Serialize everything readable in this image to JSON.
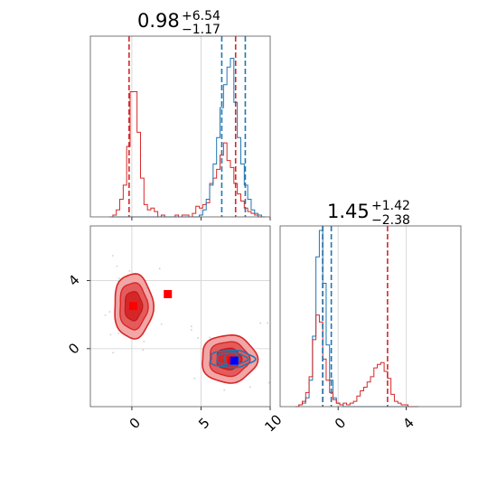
{
  "chart_data": [
    {
      "type": "histogram",
      "panel": "marginal-x",
      "title_value": "0.98",
      "title_plus": "+6.54",
      "title_minus": "−1.17",
      "xlim": [
        -3,
        10
      ],
      "grid": true,
      "bins_x": [
        -1.5,
        -1.25,
        -1.0,
        -0.75,
        -0.5,
        -0.25,
        0.0,
        0.25,
        0.5,
        0.75,
        1.0,
        1.25,
        1.5,
        1.75,
        2.0,
        2.25,
        2.5,
        2.75,
        3.0,
        3.25,
        3.5,
        3.75,
        4.0,
        4.25,
        4.5,
        4.75,
        5.0,
        5.25,
        5.5,
        5.75,
        6.0,
        6.25,
        6.5,
        6.75,
        7.0,
        7.25,
        7.5,
        7.75,
        8.0,
        8.25,
        8.5,
        8.75,
        9.0,
        9.25,
        9.5
      ],
      "series": [
        {
          "color": "#d62728",
          "values": [
            0.0,
            0.01,
            0.04,
            0.1,
            0.18,
            0.4,
            0.71,
            0.71,
            0.48,
            0.22,
            0.07,
            0.04,
            0.05,
            0.03,
            0.0,
            0.01,
            0.0,
            0.0,
            0.0,
            0.01,
            0.0,
            0.01,
            0.01,
            0.0,
            0.02,
            0.06,
            0.05,
            0.07,
            0.08,
            0.19,
            0.22,
            0.27,
            0.35,
            0.42,
            0.32,
            0.28,
            0.19,
            0.13,
            0.09,
            0.05,
            0.03,
            0.02,
            0.01,
            0.0,
            0.0
          ]
        },
        {
          "color": "#1f77b4",
          "values": [
            0.0,
            0.0,
            0.0,
            0.0,
            0.0,
            0.0,
            0.0,
            0.0,
            0.0,
            0.0,
            0.0,
            0.0,
            0.0,
            0.0,
            0.0,
            0.0,
            0.0,
            0.0,
            0.0,
            0.0,
            0.0,
            0.0,
            0.0,
            0.0,
            0.0,
            0.0,
            0.01,
            0.04,
            0.1,
            0.18,
            0.3,
            0.45,
            0.62,
            0.75,
            0.85,
            0.9,
            0.65,
            0.45,
            0.3,
            0.18,
            0.1,
            0.04,
            0.02,
            0.01,
            0.0
          ]
        }
      ],
      "vlines": [
        {
          "x": -0.2,
          "color": "#d62728"
        },
        {
          "x": 7.5,
          "color": "#d62728"
        },
        {
          "x": 6.5,
          "color": "#1f77b4"
        },
        {
          "x": 8.2,
          "color": "#1f77b4"
        }
      ]
    },
    {
      "type": "contour",
      "panel": "joint",
      "xlim": [
        -3,
        10
      ],
      "ylim": [
        -3.4,
        7.2
      ],
      "xticks": [
        0,
        5,
        10
      ],
      "yticks": [
        0,
        4
      ],
      "grid": true,
      "red_modes": [
        {
          "cx": 0.1,
          "cy": 2.5,
          "rx": 1.4,
          "ry": 1.9
        },
        {
          "cx": 7.0,
          "cy": -0.6,
          "rx": 2.0,
          "ry": 1.4
        }
      ],
      "blue_mode": {
        "cx": 7.2,
        "cy": -0.6,
        "rx": 1.6,
        "ry": 0.5
      },
      "markers": [
        {
          "x": 0.1,
          "y": 2.5,
          "color": "#ff0000"
        },
        {
          "x": 2.6,
          "y": 3.2,
          "color": "#ff0000"
        },
        {
          "x": 7.2,
          "y": -0.7,
          "color": "#ff0000"
        },
        {
          "x": 7.4,
          "y": -0.7,
          "color": "#0000ff"
        }
      ]
    },
    {
      "type": "histogram",
      "panel": "marginal-y",
      "title_value": "1.45",
      "title_plus": "+1.42",
      "title_minus": "−2.38",
      "xlim": [
        -3.4,
        7.2
      ],
      "xticks": [
        0,
        4
      ],
      "grid": true,
      "bins_x": [
        -2.4,
        -2.2,
        -2.0,
        -1.8,
        -1.6,
        -1.4,
        -1.2,
        -1.0,
        -0.8,
        -0.6,
        -0.4,
        -0.2,
        0.0,
        0.2,
        0.4,
        0.6,
        0.8,
        1.0,
        1.2,
        1.4,
        1.6,
        1.8,
        2.0,
        2.2,
        2.4,
        2.6,
        2.8,
        3.0,
        3.2,
        3.4,
        3.6,
        3.8,
        4.0,
        4.2,
        4.4,
        4.6
      ],
      "series": [
        {
          "color": "#1f77b4",
          "values": [
            0.0,
            0.01,
            0.02,
            0.05,
            0.15,
            0.4,
            0.85,
            1.0,
            0.7,
            0.35,
            0.15,
            0.05,
            0.02,
            0.01,
            0.0,
            0.0,
            0.0,
            0.0,
            0.0,
            0.0,
            0.0,
            0.0,
            0.0,
            0.0,
            0.0,
            0.0,
            0.0,
            0.0,
            0.0,
            0.0,
            0.0,
            0.0,
            0.0,
            0.0,
            0.0,
            0.0
          ]
        },
        {
          "color": "#d62728",
          "values": [
            0.0,
            0.01,
            0.03,
            0.08,
            0.17,
            0.38,
            0.52,
            0.48,
            0.27,
            0.15,
            0.08,
            0.04,
            0.02,
            0.01,
            0.02,
            0.01,
            0.02,
            0.03,
            0.06,
            0.09,
            0.11,
            0.14,
            0.17,
            0.22,
            0.24,
            0.25,
            0.2,
            0.16,
            0.07,
            0.03,
            0.02,
            0.01,
            0.01,
            0.0,
            0.0,
            0.0
          ]
        }
      ],
      "vlines": [
        {
          "x": -0.9,
          "color": "#d62728"
        },
        {
          "x": -0.9,
          "color": "#1f77b4"
        },
        {
          "x": -0.4,
          "color": "#1f77b4"
        },
        {
          "x": 2.9,
          "color": "#d62728"
        }
      ]
    }
  ]
}
